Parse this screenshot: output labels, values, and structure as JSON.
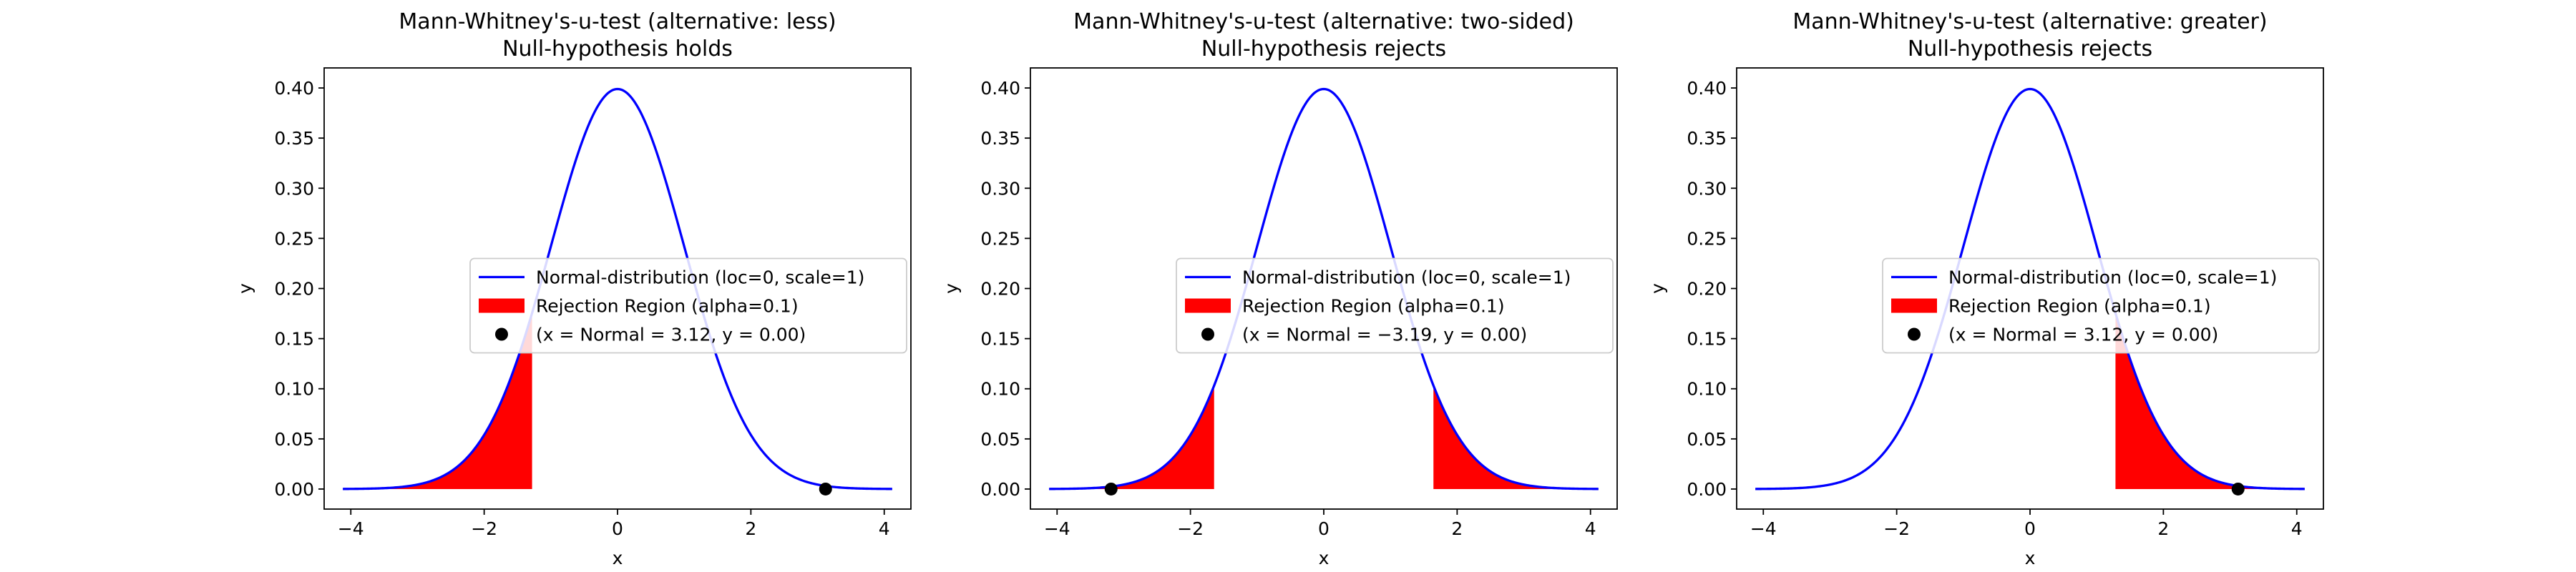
{
  "chart_data": [
    {
      "type": "line",
      "title": "Mann-Whitney's-u-test (alternative: less)",
      "subtitle": "Null-hypothesis holds",
      "xlabel": "x",
      "ylabel": "y",
      "xlim": [
        -4.4,
        4.4
      ],
      "ylim": [
        -0.02,
        0.42
      ],
      "xticks": [
        -4,
        -2,
        0,
        2,
        4
      ],
      "yticks": [
        0.0,
        0.05,
        0.1,
        0.15,
        0.2,
        0.25,
        0.3,
        0.35,
        0.4
      ],
      "curve_range": [
        -4.12,
        4.12
      ],
      "legend_position": "center-right",
      "series": [
        {
          "name": "Normal-distribution (loc=0, scale=1)",
          "kind": "line",
          "color": "#0000ff",
          "loc": 0,
          "scale": 1
        },
        {
          "name": "Rejection Region (alpha=0.1)",
          "kind": "area",
          "color": "#ff0000",
          "regions": [
            [
              -4.12,
              -1.2816
            ]
          ]
        },
        {
          "name": "(x = Normal = 3.12, y = 0.00)",
          "kind": "point",
          "color": "#000000",
          "x": 3.12,
          "y": 0.0
        }
      ]
    },
    {
      "type": "line",
      "title": "Mann-Whitney's-u-test (alternative: two-sided)",
      "subtitle": "Null-hypothesis rejects",
      "xlabel": "x",
      "ylabel": "y",
      "xlim": [
        -4.4,
        4.4
      ],
      "ylim": [
        -0.02,
        0.42
      ],
      "xticks": [
        -4,
        -2,
        0,
        2,
        4
      ],
      "yticks": [
        0.0,
        0.05,
        0.1,
        0.15,
        0.2,
        0.25,
        0.3,
        0.35,
        0.4
      ],
      "curve_range": [
        -4.12,
        4.12
      ],
      "legend_position": "center-right",
      "series": [
        {
          "name": "Normal-distribution (loc=0, scale=1)",
          "kind": "line",
          "color": "#0000ff",
          "loc": 0,
          "scale": 1
        },
        {
          "name": "Rejection Region (alpha=0.1)",
          "kind": "area",
          "color": "#ff0000",
          "regions": [
            [
              -4.12,
              -1.6449
            ],
            [
              1.6449,
              4.12
            ]
          ]
        },
        {
          "name": "(x = Normal = −3.19, y = 0.00)",
          "kind": "point",
          "color": "#000000",
          "x": -3.19,
          "y": 0.0
        }
      ]
    },
    {
      "type": "line",
      "title": "Mann-Whitney's-u-test (alternative: greater)",
      "subtitle": "Null-hypothesis rejects",
      "xlabel": "x",
      "ylabel": "y",
      "xlim": [
        -4.4,
        4.4
      ],
      "ylim": [
        -0.02,
        0.42
      ],
      "xticks": [
        -4,
        -2,
        0,
        2,
        4
      ],
      "yticks": [
        0.0,
        0.05,
        0.1,
        0.15,
        0.2,
        0.25,
        0.3,
        0.35,
        0.4
      ],
      "curve_range": [
        -4.12,
        4.12
      ],
      "legend_position": "center-right",
      "series": [
        {
          "name": "Normal-distribution (loc=0, scale=1)",
          "kind": "line",
          "color": "#0000ff",
          "loc": 0,
          "scale": 1
        },
        {
          "name": "Rejection Region (alpha=0.1)",
          "kind": "area",
          "color": "#ff0000",
          "regions": [
            [
              1.2816,
              4.12
            ]
          ]
        },
        {
          "name": "(x = Normal = 3.12, y = 0.00)",
          "kind": "point",
          "color": "#000000",
          "x": 3.12,
          "y": 0.0
        }
      ]
    }
  ]
}
